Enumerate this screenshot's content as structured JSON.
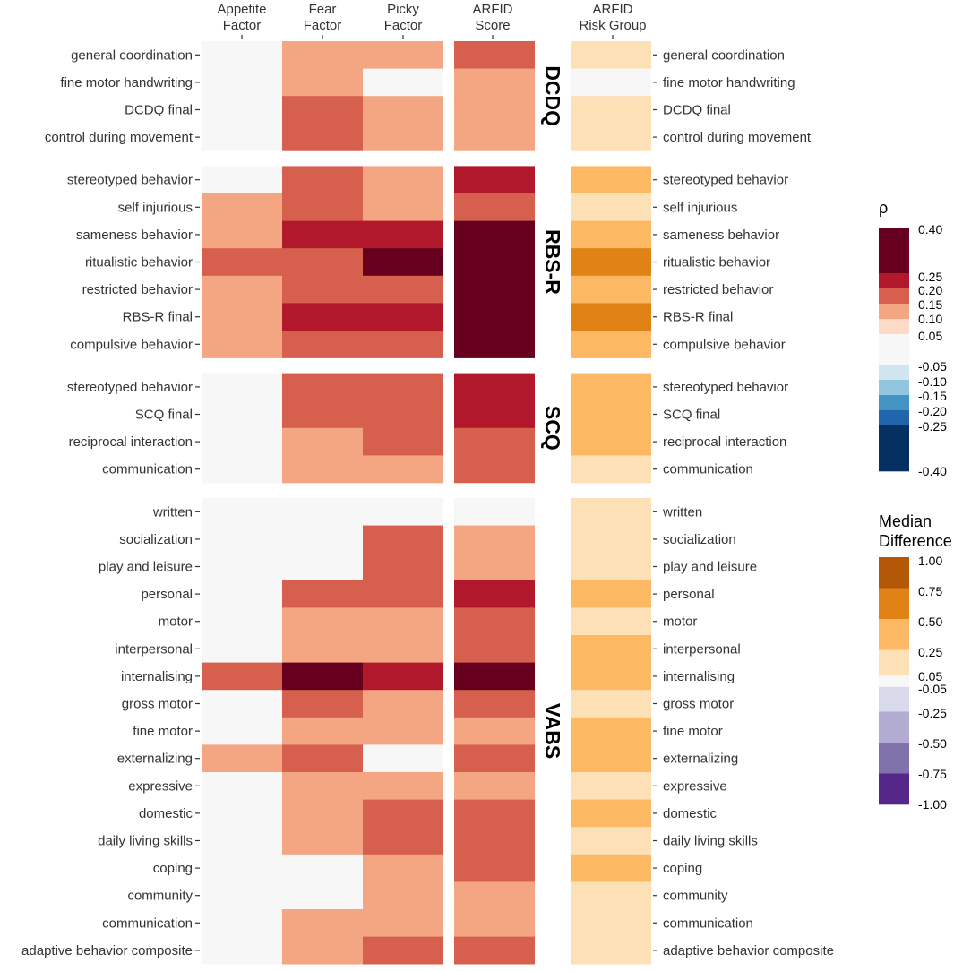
{
  "chart_data": {
    "type": "heatmap",
    "title": "",
    "columns_left": [
      "Appetite Factor",
      "Fear Factor",
      "Picky Factor",
      "ARFID Score"
    ],
    "column_labels": {
      "appetite": [
        "Appetite",
        "Factor"
      ],
      "fear": [
        "Fear",
        "Factor"
      ],
      "picky": [
        "Picky",
        "Factor"
      ],
      "arfid": [
        "ARFID",
        "Score"
      ],
      "risk": [
        "ARFID",
        "Risk Group"
      ]
    },
    "panels": [
      {
        "name": "DCDQ",
        "rows": [
          {
            "label": "general coordination",
            "rho": [
              0.0,
              0.1,
              0.1,
              0.15
            ],
            "median_difference": 0.1
          },
          {
            "label": "fine motor handwriting",
            "rho": [
              0.0,
              0.1,
              0.0,
              0.1
            ],
            "median_difference": 0.0
          },
          {
            "label": "DCDQ final",
            "rho": [
              0.0,
              0.15,
              0.1,
              0.1
            ],
            "median_difference": 0.1
          },
          {
            "label": "control during movement",
            "rho": [
              0.0,
              0.15,
              0.1,
              0.1
            ],
            "median_difference": 0.1
          }
        ]
      },
      {
        "name": "RBS-R",
        "rows": [
          {
            "label": "stereotyped behavior",
            "rho": [
              0.0,
              0.15,
              0.1,
              0.2
            ],
            "median_difference": 0.4
          },
          {
            "label": "self injurious",
            "rho": [
              0.1,
              0.15,
              0.1,
              0.15
            ],
            "median_difference": 0.1
          },
          {
            "label": "sameness behavior",
            "rho": [
              0.1,
              0.2,
              0.2,
              0.35
            ],
            "median_difference": 0.4
          },
          {
            "label": "ritualistic behavior",
            "rho": [
              0.15,
              0.15,
              0.35,
              0.35
            ],
            "median_difference": 0.6
          },
          {
            "label": "restricted behavior",
            "rho": [
              0.1,
              0.15,
              0.15,
              0.25
            ],
            "median_difference": 0.4
          },
          {
            "label": "RBS-R final",
            "rho": [
              0.1,
              0.2,
              0.2,
              0.35
            ],
            "median_difference": 0.6
          },
          {
            "label": "compulsive behavior",
            "rho": [
              0.1,
              0.15,
              0.15,
              0.25
            ],
            "median_difference": 0.4
          }
        ]
      },
      {
        "name": "SCQ",
        "rows": [
          {
            "label": "stereotyped behavior",
            "rho": [
              0.0,
              0.15,
              0.15,
              0.2
            ],
            "median_difference": 0.4
          },
          {
            "label": "SCQ final",
            "rho": [
              0.0,
              0.15,
              0.15,
              0.2
            ],
            "median_difference": 0.4
          },
          {
            "label": "reciprocal interaction",
            "rho": [
              0.0,
              0.1,
              0.15,
              0.15
            ],
            "median_difference": 0.4
          },
          {
            "label": "communication",
            "rho": [
              0.0,
              0.1,
              0.1,
              0.15
            ],
            "median_difference": 0.1
          }
        ]
      },
      {
        "name": "VABS",
        "rows": [
          {
            "label": "written",
            "rho": [
              0.0,
              0.0,
              0.0,
              0.0
            ],
            "median_difference": 0.1
          },
          {
            "label": "socialization",
            "rho": [
              0.0,
              0.0,
              0.15,
              0.1
            ],
            "median_difference": 0.1
          },
          {
            "label": "play and leisure",
            "rho": [
              0.0,
              0.0,
              0.15,
              0.1
            ],
            "median_difference": 0.1
          },
          {
            "label": "personal",
            "rho": [
              0.0,
              0.15,
              0.15,
              0.2
            ],
            "median_difference": 0.4
          },
          {
            "label": "motor",
            "rho": [
              0.0,
              0.1,
              0.1,
              0.15
            ],
            "median_difference": 0.1
          },
          {
            "label": "interpersonal",
            "rho": [
              0.0,
              0.1,
              0.1,
              0.15
            ],
            "median_difference": 0.4
          },
          {
            "label": "internalising",
            "rho": [
              0.15,
              0.25,
              0.2,
              0.35
            ],
            "median_difference": 0.4
          },
          {
            "label": "gross motor",
            "rho": [
              0.0,
              0.15,
              0.1,
              0.15
            ],
            "median_difference": 0.1
          },
          {
            "label": "fine motor",
            "rho": [
              0.0,
              0.1,
              0.1,
              0.1
            ],
            "median_difference": 0.4
          },
          {
            "label": "externalizing",
            "rho": [
              0.1,
              0.15,
              0.0,
              0.15
            ],
            "median_difference": 0.4
          },
          {
            "label": "expressive",
            "rho": [
              0.0,
              0.1,
              0.1,
              0.1
            ],
            "median_difference": 0.1
          },
          {
            "label": "domestic",
            "rho": [
              0.0,
              0.1,
              0.15,
              0.15
            ],
            "median_difference": 0.4
          },
          {
            "label": "daily living skills",
            "rho": [
              0.0,
              0.1,
              0.15,
              0.15
            ],
            "median_difference": 0.1
          },
          {
            "label": "coping",
            "rho": [
              0.0,
              0.0,
              0.1,
              0.15
            ],
            "median_difference": 0.4
          },
          {
            "label": "community",
            "rho": [
              0.0,
              0.0,
              0.1,
              0.1
            ],
            "median_difference": 0.1
          },
          {
            "label": "communication",
            "rho": [
              0.0,
              0.1,
              0.1,
              0.1
            ],
            "median_difference": 0.1
          },
          {
            "label": "adaptive behavior composite",
            "rho": [
              0.0,
              0.1,
              0.15,
              0.15
            ],
            "median_difference": 0.1
          }
        ]
      }
    ],
    "legends": {
      "rho": {
        "title": "ρ",
        "range": [
          -0.4,
          0.4
        ],
        "bins": [
          {
            "lo": 0.25,
            "hi": 0.4,
            "color": "#67001f"
          },
          {
            "lo": 0.2,
            "hi": 0.25,
            "color": "#b2182b"
          },
          {
            "lo": 0.15,
            "hi": 0.2,
            "color": "#d6604d"
          },
          {
            "lo": 0.1,
            "hi": 0.15,
            "color": "#f4a582"
          },
          {
            "lo": 0.05,
            "hi": 0.1,
            "color": "#fddbc7"
          },
          {
            "lo": -0.05,
            "hi": 0.05,
            "color": "#f7f7f7"
          },
          {
            "lo": -0.1,
            "hi": -0.05,
            "color": "#d1e5f0"
          },
          {
            "lo": -0.15,
            "hi": -0.1,
            "color": "#92c5de"
          },
          {
            "lo": -0.2,
            "hi": -0.15,
            "color": "#4393c3"
          },
          {
            "lo": -0.25,
            "hi": -0.2,
            "color": "#2166ac"
          },
          {
            "lo": -0.4,
            "hi": -0.25,
            "color": "#053061"
          }
        ],
        "tick_labels": [
          "0.40",
          "0.25",
          "0.20",
          "0.15",
          "0.10",
          "0.05",
          "-0.05",
          "-0.10",
          "-0.15",
          "-0.20",
          "-0.25",
          "-0.40"
        ]
      },
      "median_difference": {
        "title": [
          "Median",
          "Difference"
        ],
        "range": [
          -1.0,
          1.0
        ],
        "bins": [
          {
            "lo": 0.75,
            "hi": 1.0,
            "color": "#b35806"
          },
          {
            "lo": 0.5,
            "hi": 0.75,
            "color": "#e08214"
          },
          {
            "lo": 0.25,
            "hi": 0.5,
            "color": "#fdb863"
          },
          {
            "lo": 0.05,
            "hi": 0.25,
            "color": "#fee0b6"
          },
          {
            "lo": -0.05,
            "hi": 0.05,
            "color": "#f7f7f7"
          },
          {
            "lo": -0.25,
            "hi": -0.05,
            "color": "#d8daeb"
          },
          {
            "lo": -0.5,
            "hi": -0.25,
            "color": "#b2abd2"
          },
          {
            "lo": -0.75,
            "hi": -0.5,
            "color": "#8073ac"
          },
          {
            "lo": -1.0,
            "hi": -0.75,
            "color": "#542788"
          }
        ],
        "tick_labels": [
          "1.00",
          "0.75",
          "0.50",
          "0.25",
          "0.05",
          "-0.05",
          "-0.25",
          "-0.50",
          "-0.75",
          "-1.00"
        ]
      }
    }
  }
}
